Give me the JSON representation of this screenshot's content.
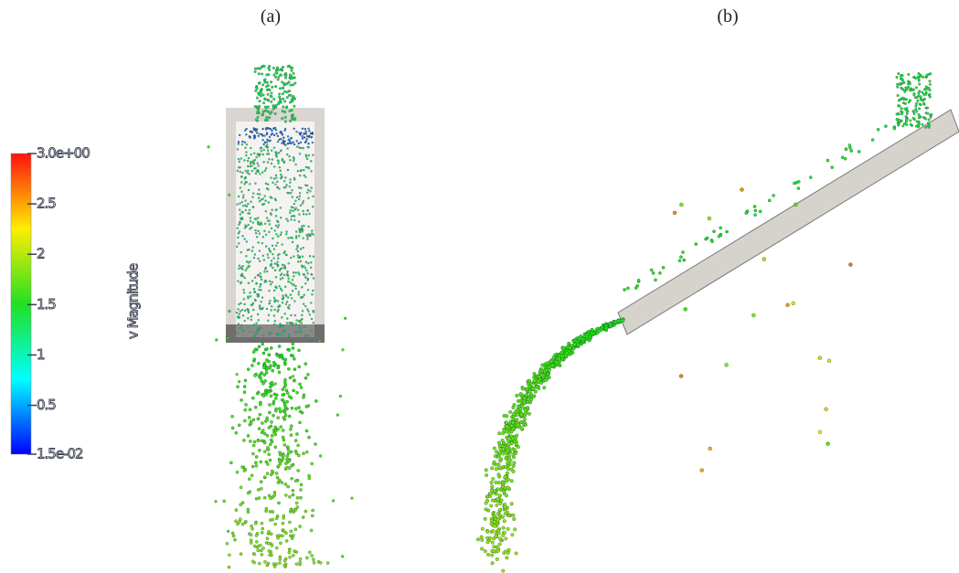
{
  "panels": [
    {
      "label": "(a)"
    },
    {
      "label": "(b)"
    }
  ],
  "colorbar": {
    "title": "v Magnitude",
    "range": [
      0.015,
      3
    ],
    "ticks": [
      {
        "value": 3,
        "label": "3.0e+00"
      },
      2.5,
      2,
      1.5,
      1,
      0.5,
      {
        "value": 0.015,
        "label": "1.5e-02"
      }
    ]
  }
}
